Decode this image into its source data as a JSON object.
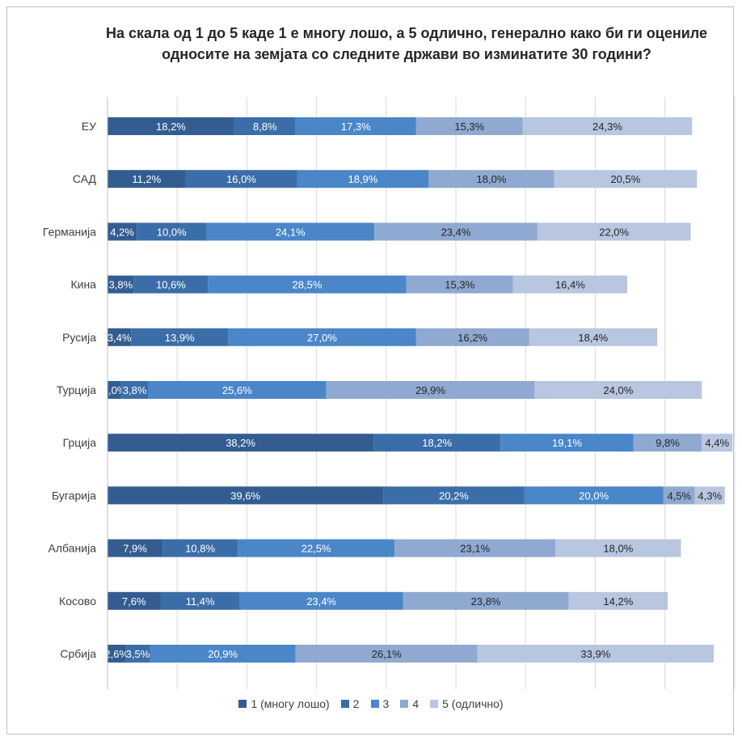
{
  "chart_data": {
    "type": "bar",
    "orientation": "horizontal",
    "stacked": true,
    "title": "На скала од 1 до 5 каде 1 е многу лошо, а 5 одлично, генерално како би ги оцениле односите на земјата со следните држави во изминатите 30 години?",
    "categories": [
      "ЕУ",
      "САД",
      "Германија",
      "Кина",
      "Русија",
      "Турција",
      "Грција",
      "Бугарија",
      "Албанија",
      "Косово",
      "Србија"
    ],
    "series": [
      {
        "name": "1 (многу лошо)",
        "color": "#335d91",
        "values": [
          18.2,
          11.2,
          4.2,
          3.8,
          3.4,
          2.0,
          38.2,
          39.6,
          7.9,
          7.6,
          2.6
        ],
        "labels": [
          "18,2%",
          "11,2%",
          "4,2%",
          "3,8%",
          "3,4%",
          "2,0%",
          "38,2%",
          "39,6%",
          "7,9%",
          "7,6%",
          "2,6%"
        ]
      },
      {
        "name": "2",
        "color": "#3b6ea8",
        "values": [
          8.8,
          16.0,
          10.0,
          10.6,
          13.9,
          3.8,
          18.2,
          20.2,
          10.8,
          11.4,
          3.5
        ],
        "labels": [
          "8,8%",
          "16,0%",
          "10,0%",
          "10,6%",
          "13,9%",
          "3,8%",
          "18,2%",
          "20,2%",
          "10,8%",
          "11,4%",
          "3,5%"
        ]
      },
      {
        "name": "3",
        "color": "#4a86c8",
        "values": [
          17.3,
          18.9,
          24.1,
          28.5,
          27.0,
          25.6,
          19.1,
          20.0,
          22.5,
          23.4,
          20.9
        ],
        "labels": [
          "17,3%",
          "18,9%",
          "24,1%",
          "28,5%",
          "27,0%",
          "25,6%",
          "19,1%",
          "20,0%",
          "22,5%",
          "23,4%",
          "20,9%"
        ]
      },
      {
        "name": "4",
        "color": "#8fa9d1",
        "values": [
          15.3,
          18.0,
          23.4,
          15.3,
          16.2,
          29.9,
          9.8,
          4.5,
          23.1,
          23.8,
          26.1
        ],
        "labels": [
          "15,3%",
          "18,0%",
          "23,4%",
          "15,3%",
          "16,2%",
          "29,9%",
          "9,8%",
          "4,5%",
          "23,1%",
          "23,8%",
          "26,1%"
        ]
      },
      {
        "name": "5 (одлично)",
        "color": "#b8c6e0",
        "values": [
          24.3,
          20.5,
          22.0,
          16.4,
          18.4,
          24.0,
          4.4,
          4.3,
          18.0,
          14.2,
          33.9
        ],
        "labels": [
          "24,3%",
          "20,5%",
          "22,0%",
          "16,4%",
          "18,4%",
          "24,0%",
          "4,4%",
          "4,3%",
          "18,0%",
          "14,2%",
          "33,9%"
        ]
      }
    ],
    "xlim": [
      0,
      100
    ],
    "grid": true,
    "legend": "bottom"
  }
}
